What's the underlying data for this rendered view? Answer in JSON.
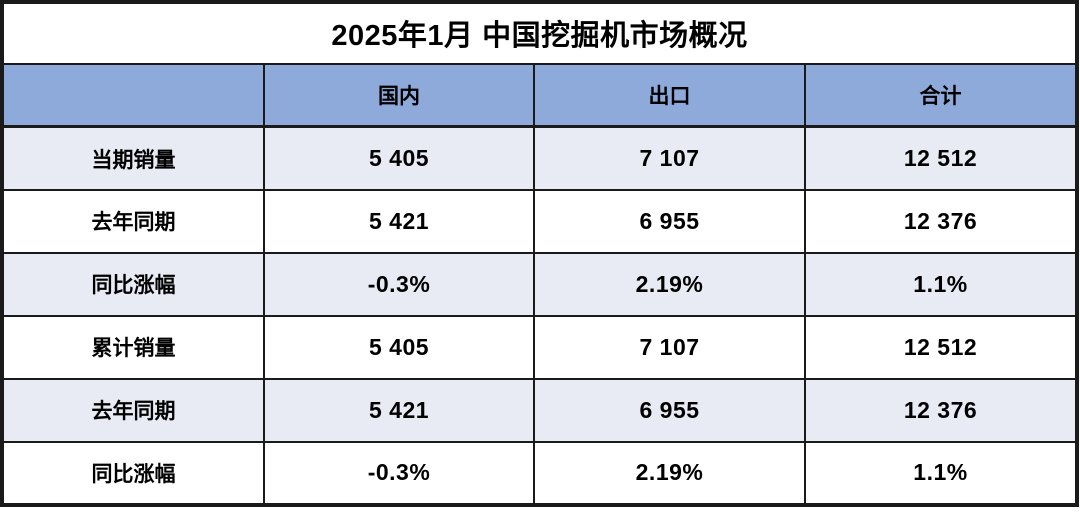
{
  "title": "2025年1月 中国挖掘机市场概况",
  "chart_data": {
    "type": "table",
    "title": "2025年1月 中国挖掘机市场概况",
    "columns": [
      "",
      "国内",
      "出口",
      "合计"
    ],
    "rows": [
      {
        "label": "当期销量",
        "values": [
          "5 405",
          "7 107",
          "12 512"
        ]
      },
      {
        "label": "去年同期",
        "values": [
          "5 421",
          "6 955",
          "12 376"
        ]
      },
      {
        "label": "同比涨幅",
        "values": [
          "-0.3%",
          "2.19%",
          "1.1%"
        ]
      },
      {
        "label": "累计销量",
        "values": [
          "5 405",
          "7 107",
          "12 512"
        ]
      },
      {
        "label": "去年同期",
        "values": [
          "5 421",
          "6 955",
          "12 376"
        ]
      },
      {
        "label": "同比涨幅",
        "values": [
          "-0.3%",
          "2.19%",
          "1.1%"
        ]
      }
    ],
    "notes": {
      "numeric_values": {
        "current_month": {
          "domestic": 5405,
          "export": 7107,
          "total": 12512
        },
        "last_year_same_period": {
          "domestic": 5421,
          "export": 6955,
          "total": 12376
        },
        "yoy_change_pct": {
          "domestic": -0.3,
          "export": 2.19,
          "total": 1.1
        },
        "cumulative": {
          "domestic": 5405,
          "export": 7107,
          "total": 12512
        },
        "cumulative_last_year": {
          "domestic": 5421,
          "export": 6955,
          "total": 12376
        },
        "cumulative_yoy_change_pct": {
          "domestic": -0.3,
          "export": 2.19,
          "total": 1.1
        }
      }
    }
  },
  "colors": {
    "header_bg": "#8EAADB",
    "row_alt_bg": "#E8EAF4",
    "border": "#1a1a1a",
    "title_text": "#000000",
    "cell_text": "#000000"
  }
}
